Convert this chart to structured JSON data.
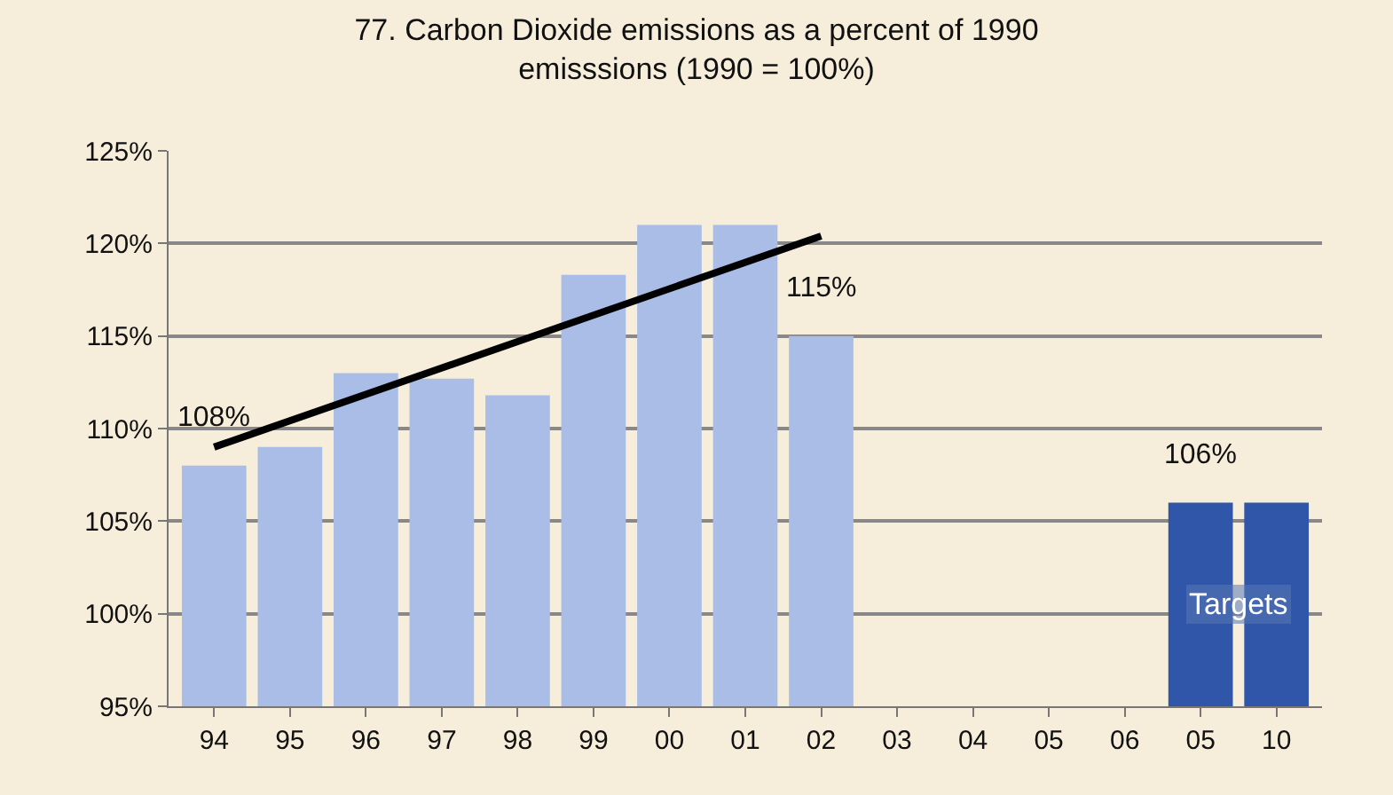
{
  "chart_data": {
    "type": "bar",
    "title": "77. Carbon Dioxide emissions as a percent of 1990\nemisssions (1990 = 100%)",
    "categories": [
      "94",
      "95",
      "96",
      "97",
      "98",
      "99",
      "00",
      "01",
      "02",
      "03",
      "04",
      "05",
      "06",
      "05",
      "10"
    ],
    "series": [
      {
        "color": "#a9bde6",
        "values": [
          108,
          109,
          113,
          112.7,
          111.8,
          118.3,
          121,
          121,
          115,
          null,
          null,
          null,
          null,
          null,
          null
        ],
        "value_labels": [
          "108%",
          null,
          null,
          null,
          null,
          null,
          null,
          null,
          "115%",
          null,
          null,
          null,
          null,
          null,
          null
        ]
      },
      {
        "name": "Targets",
        "color": "#2f56a8",
        "values": [
          null,
          null,
          null,
          null,
          null,
          null,
          null,
          null,
          null,
          null,
          null,
          null,
          null,
          106,
          106
        ],
        "value_labels": [
          null,
          null,
          null,
          null,
          null,
          null,
          null,
          null,
          null,
          null,
          null,
          null,
          null,
          "106%",
          null
        ]
      },
      {
        "type": "line",
        "color": "#000000",
        "x": [
          "94",
          "02"
        ],
        "values": [
          109,
          120.4
        ]
      }
    ],
    "ylim": [
      95,
      125
    ],
    "yticks": [
      {
        "value": 95,
        "label": "95%"
      },
      {
        "value": 100,
        "label": "100%"
      },
      {
        "value": 105,
        "label": "105%"
      },
      {
        "value": 110,
        "label": "110%"
      },
      {
        "value": 115,
        "label": "115%"
      },
      {
        "value": 120,
        "label": "120%"
      },
      {
        "value": 125,
        "label": "125%"
      }
    ],
    "grid": "y"
  }
}
